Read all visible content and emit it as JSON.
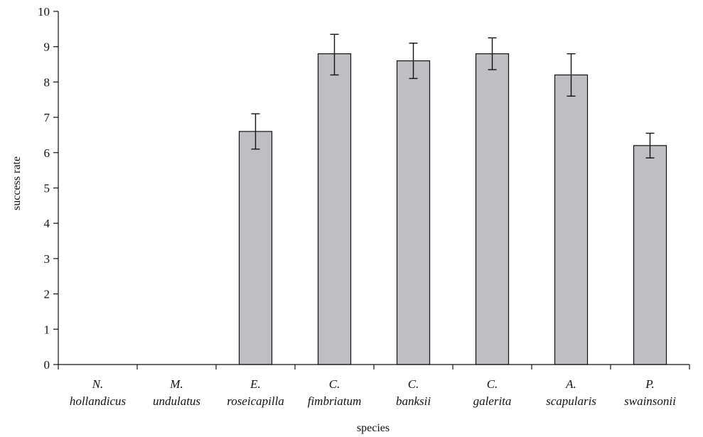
{
  "chart_data": {
    "type": "bar",
    "xlabel": "species",
    "ylabel": "success rate",
    "ylim": [
      0,
      10
    ],
    "yticks": [
      0,
      1,
      2,
      3,
      4,
      5,
      6,
      7,
      8,
      9,
      10
    ],
    "categories": [
      [
        "N.",
        "hollandicus"
      ],
      [
        "M.",
        "undulatus"
      ],
      [
        "E.",
        "roseicapilla"
      ],
      [
        "C.",
        "fimbriatum"
      ],
      [
        "C.",
        "banksii"
      ],
      [
        "C.",
        "galerita"
      ],
      [
        "A.",
        "scapularis"
      ],
      [
        "P.",
        "swainsonii"
      ]
    ],
    "values": [
      0,
      0,
      6.6,
      8.8,
      8.6,
      8.8,
      8.2,
      6.2
    ],
    "error_low": [
      0,
      0,
      6.1,
      8.2,
      8.1,
      8.35,
      7.6,
      5.85
    ],
    "error_high": [
      0,
      0,
      7.1,
      9.35,
      9.1,
      9.25,
      8.8,
      6.55
    ],
    "bar_color": "#bfbfc3",
    "grid": false,
    "legend": "none"
  }
}
